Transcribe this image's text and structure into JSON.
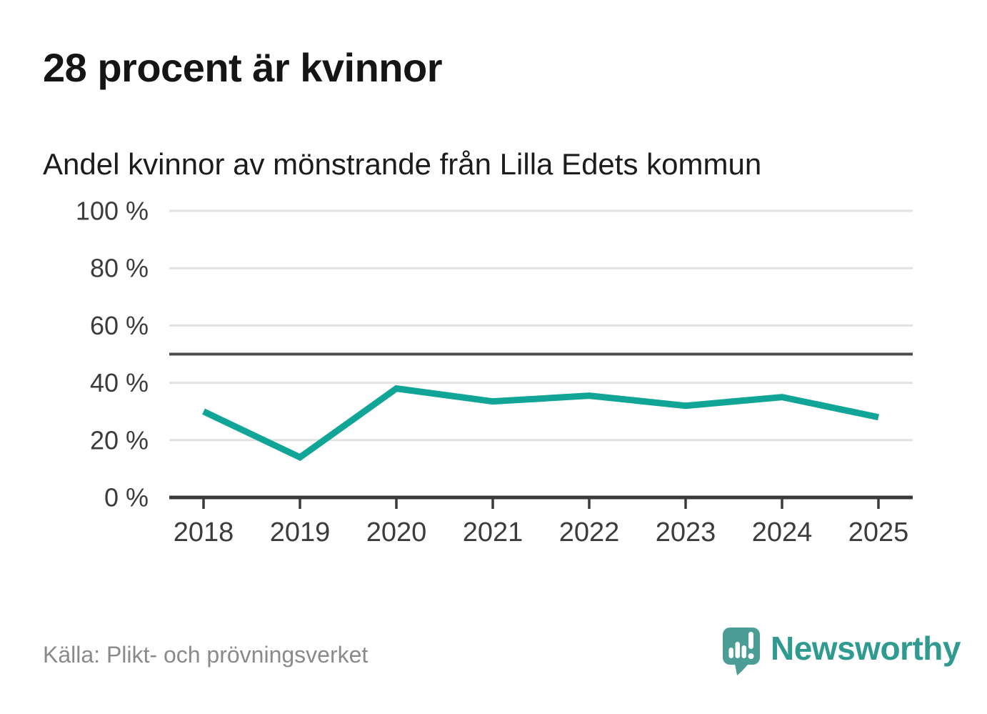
{
  "page": {
    "title": "28 procent är kvinnor",
    "subtitle": "Andel kvinnor av mönstrande från Lilla Edets kommun",
    "source": "Källa: Plikt- och prövningsverket",
    "brand": {
      "name": "Newsworthy"
    }
  },
  "colors": {
    "line_teal": "#10a597",
    "logo_teal": "#4c9d96",
    "logo_text_teal": "#2f9b90",
    "grid": "#e2e2e2",
    "axis": "#3a3a3a",
    "reference": "#4d4d4d",
    "tick_text": "#3c3c3c",
    "muted_text": "#8a8a8a"
  },
  "chart_data": {
    "type": "line",
    "title": "28 procent är kvinnor",
    "subtitle": "Andel kvinnor av mönstrande från Lilla Edets kommun",
    "categories": [
      "2018",
      "2019",
      "2020",
      "2021",
      "2022",
      "2023",
      "2024",
      "2025"
    ],
    "series": [
      {
        "name": "Andel kvinnor av mönstrande",
        "color": "#10a597",
        "values": [
          30,
          14,
          38,
          33.5,
          35.5,
          32,
          35,
          28
        ]
      }
    ],
    "xlabel": "",
    "ylabel": "",
    "ylim": [
      0,
      100
    ],
    "yticks": [
      {
        "value": 0,
        "label": "0 %"
      },
      {
        "value": 20,
        "label": "20 %"
      },
      {
        "value": 40,
        "label": "40 %"
      },
      {
        "value": 60,
        "label": "60 %"
      },
      {
        "value": 80,
        "label": "80 %"
      },
      {
        "value": 100,
        "label": "100 %"
      }
    ],
    "reference_line": 50,
    "grid": "horizontal",
    "legend": "none"
  }
}
